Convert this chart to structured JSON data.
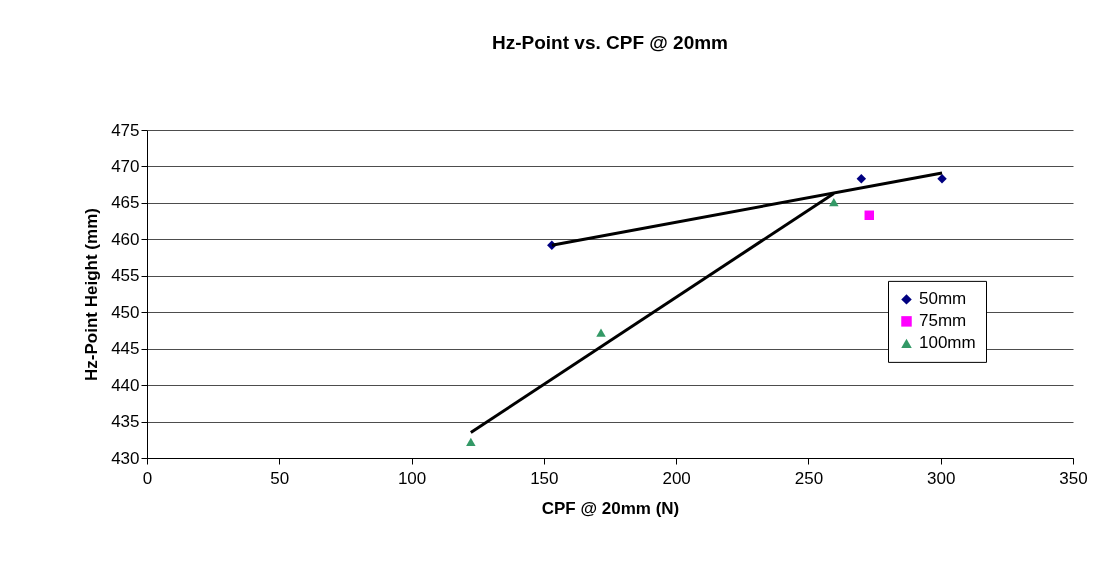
{
  "chart_data": {
    "type": "scatter",
    "title": "Hz-Point vs. CPF @ 20mm",
    "xlabel": "CPF @ 20mm (N)",
    "ylabel": "Hz-Point Height (mm)",
    "xlim": [
      0,
      350
    ],
    "xticks": [
      0,
      50,
      100,
      150,
      200,
      250,
      300,
      350
    ],
    "ylim": [
      430,
      475
    ],
    "yticks": [
      430,
      435,
      440,
      445,
      450,
      455,
      460,
      465,
      470,
      475
    ],
    "grid": "y",
    "legend": "right",
    "series": [
      {
        "name": "50mm",
        "type": "scatter",
        "marker": "diamond",
        "color": "#000080",
        "x": [
          153,
          270,
          300.5
        ],
        "values": [
          459.2,
          468.3,
          468.3
        ]
      },
      {
        "name": "75mm",
        "type": "scatter",
        "marker": "square",
        "color": "#ff00ff",
        "x": [
          273
        ],
        "values": [
          463.3
        ]
      },
      {
        "name": "100mm",
        "type": "scatter",
        "marker": "triangle",
        "color": "#339966",
        "x": [
          122.4,
          171.6,
          259.6
        ],
        "values": [
          432.2,
          447.2,
          465.1
        ]
      },
      {
        "type": "line",
        "color": "#000000",
        "x": [
          153,
          300.5
        ],
        "values": [
          459.2,
          469.1
        ]
      },
      {
        "type": "line",
        "color": "#000000",
        "x": [
          122.4,
          259.6
        ],
        "values": [
          433.5,
          466.3
        ]
      }
    ]
  }
}
